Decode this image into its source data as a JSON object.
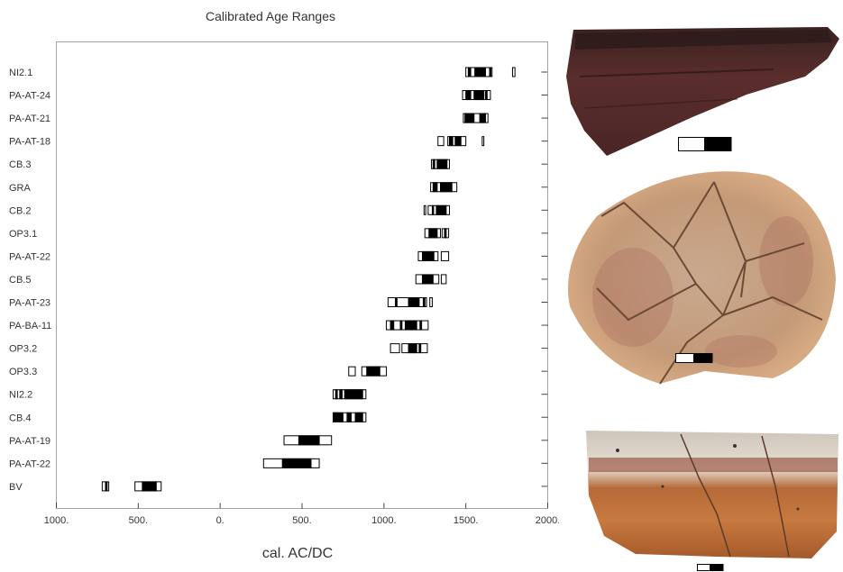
{
  "chart_data": {
    "type": "bar",
    "title": "Calibrated Age Ranges",
    "xlabel": "cal. AC/DC",
    "ylabel": "",
    "xlim": [
      -1000,
      2000
    ],
    "x_ticks": [
      -1000,
      -500,
      0,
      500,
      1000,
      1500,
      2000
    ],
    "x_tick_labels": [
      "1000.",
      "500.",
      "0.",
      "500.",
      "1000.",
      "1500.",
      "2000."
    ],
    "categories": [
      "NI2.1",
      "PA-AT-24",
      "PA-AT-21",
      "PA-AT-18",
      "CB.3",
      "GRA",
      "CB.2",
      "OP3.1",
      "PA-AT-22",
      "CB.5",
      "PA-AT-23",
      "PA-BA-11",
      "OP3.2",
      "OP3.3",
      "NI2.2",
      "CB.4",
      "PA-AT-19",
      "PA-AT-22",
      "BV"
    ],
    "ranges": [
      {
        "label": "NI2.1",
        "intervals95": [
          [
            1500,
            1660
          ],
          [
            1785,
            1800
          ]
        ],
        "intervals68": [
          [
            1515,
            1530
          ],
          [
            1555,
            1620
          ],
          [
            1645,
            1650
          ]
        ]
      },
      {
        "label": "PA-AT-24",
        "intervals95": [
          [
            1480,
            1650
          ]
        ],
        "intervals68": [
          [
            1500,
            1530
          ],
          [
            1550,
            1610
          ],
          [
            1620,
            1630
          ]
        ]
      },
      {
        "label": "PA-AT-21",
        "intervals95": [
          [
            1485,
            1635
          ]
        ],
        "intervals68": [
          [
            1495,
            1550
          ],
          [
            1585,
            1620
          ]
        ]
      },
      {
        "label": "PA-AT-18",
        "intervals95": [
          [
            1330,
            1365
          ],
          [
            1390,
            1500
          ],
          [
            1600,
            1610
          ]
        ],
        "intervals68": [
          [
            1400,
            1420
          ],
          [
            1435,
            1470
          ]
        ]
      },
      {
        "label": "CB.3",
        "intervals95": [
          [
            1290,
            1400
          ]
        ],
        "intervals68": [
          [
            1300,
            1310
          ],
          [
            1325,
            1385
          ]
        ]
      },
      {
        "label": "GRA",
        "intervals95": [
          [
            1285,
            1445
          ]
        ],
        "intervals68": [
          [
            1300,
            1325
          ],
          [
            1345,
            1415
          ]
        ]
      },
      {
        "label": "CB.2",
        "intervals95": [
          [
            1245,
            1255
          ],
          [
            1270,
            1400
          ]
        ],
        "intervals68": [
          [
            1295,
            1300
          ],
          [
            1320,
            1380
          ]
        ]
      },
      {
        "label": "OP3.1",
        "intervals95": [
          [
            1250,
            1345
          ],
          [
            1355,
            1395
          ]
        ],
        "intervals68": [
          [
            1275,
            1325
          ],
          [
            1370,
            1380
          ]
        ]
      },
      {
        "label": "PA-AT-22",
        "intervals95": [
          [
            1210,
            1330
          ],
          [
            1350,
            1395
          ]
        ],
        "intervals68": [
          [
            1235,
            1305
          ]
        ]
      },
      {
        "label": "CB.5",
        "intervals95": [
          [
            1195,
            1335
          ],
          [
            1350,
            1380
          ]
        ],
        "intervals68": [
          [
            1235,
            1300
          ]
        ]
      },
      {
        "label": "PA-AT-23",
        "intervals95": [
          [
            1025,
            1260
          ],
          [
            1280,
            1295
          ]
        ],
        "intervals68": [
          [
            1070,
            1080
          ],
          [
            1150,
            1215
          ],
          [
            1240,
            1250
          ]
        ]
      },
      {
        "label": "PA-BA-11",
        "intervals95": [
          [
            1015,
            1270
          ]
        ],
        "intervals68": [
          [
            1040,
            1060
          ],
          [
            1100,
            1110
          ],
          [
            1130,
            1200
          ],
          [
            1220,
            1230
          ]
        ]
      },
      {
        "label": "OP3.2",
        "intervals95": [
          [
            1040,
            1095
          ],
          [
            1110,
            1265
          ]
        ],
        "intervals68": [
          [
            1150,
            1200
          ],
          [
            1215,
            1225
          ]
        ]
      },
      {
        "label": "OP3.3",
        "intervals95": [
          [
            785,
            825
          ],
          [
            865,
            1015
          ]
        ],
        "intervals68": [
          [
            895,
            975
          ]
        ]
      },
      {
        "label": "NI2.2",
        "intervals95": [
          [
            690,
            890
          ]
        ],
        "intervals68": [
          [
            705,
            715
          ],
          [
            730,
            745
          ],
          [
            760,
            870
          ]
        ]
      },
      {
        "label": "CB.4",
        "intervals95": [
          [
            690,
            890
          ]
        ],
        "intervals68": [
          [
            690,
            750
          ],
          [
            775,
            800
          ],
          [
            825,
            870
          ]
        ]
      },
      {
        "label": "PA-AT-19",
        "intervals95": [
          [
            390,
            680
          ]
        ],
        "intervals68": [
          [
            480,
            605
          ]
        ]
      },
      {
        "label": "PA-AT-22",
        "intervals95": [
          [
            265,
            605
          ]
        ],
        "intervals68": [
          [
            380,
            555
          ]
        ]
      },
      {
        "label": "BV",
        "intervals95": [
          [
            -720,
            -680
          ],
          [
            -520,
            -360
          ]
        ],
        "intervals68": [
          [
            -700,
            -690
          ],
          [
            -475,
            -390
          ]
        ]
      }
    ],
    "grid": false,
    "legend": "none"
  },
  "colors": {
    "frame": "#444444",
    "range95": "#ffffff",
    "range68": "#000000"
  },
  "photos": {
    "top": "dark-brown-rim-sherd",
    "middle": "reconstructed-red-plate",
    "bottom": "painted-bowl-fragment"
  }
}
